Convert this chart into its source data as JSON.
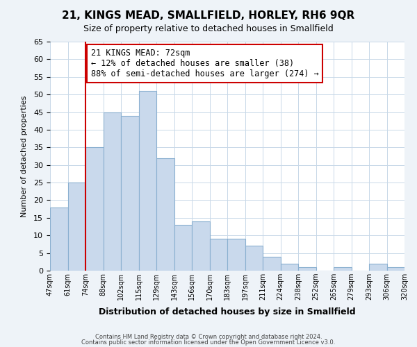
{
  "title": "21, KINGS MEAD, SMALLFIELD, HORLEY, RH6 9QR",
  "subtitle": "Size of property relative to detached houses in Smallfield",
  "xlabel": "Distribution of detached houses by size in Smallfield",
  "ylabel": "Number of detached properties",
  "bin_labels": [
    "47sqm",
    "61sqm",
    "74sqm",
    "88sqm",
    "102sqm",
    "115sqm",
    "129sqm",
    "143sqm",
    "156sqm",
    "170sqm",
    "183sqm",
    "197sqm",
    "211sqm",
    "224sqm",
    "238sqm",
    "252sqm",
    "265sqm",
    "279sqm",
    "293sqm",
    "306sqm",
    "320sqm"
  ],
  "bar_values": [
    18,
    25,
    35,
    45,
    44,
    51,
    32,
    13,
    14,
    9,
    9,
    7,
    4,
    2,
    1,
    0,
    1,
    0,
    2,
    1
  ],
  "bar_color": "#c9d9ec",
  "bar_edge_color": "#8ab0d0",
  "vline_x": 2,
  "vline_color": "#cc0000",
  "annotation_text": "21 KINGS MEAD: 72sqm\n← 12% of detached houses are smaller (38)\n88% of semi-detached houses are larger (274) →",
  "annotation_box_color": "#ffffff",
  "annotation_box_edge_color": "#cc0000",
  "ylim": [
    0,
    65
  ],
  "yticks": [
    0,
    5,
    10,
    15,
    20,
    25,
    30,
    35,
    40,
    45,
    50,
    55,
    60,
    65
  ],
  "footer1": "Contains HM Land Registry data © Crown copyright and database right 2024.",
  "footer2": "Contains public sector information licensed under the Open Government Licence v3.0.",
  "bg_color": "#eef3f8",
  "plot_bg_color": "#ffffff"
}
